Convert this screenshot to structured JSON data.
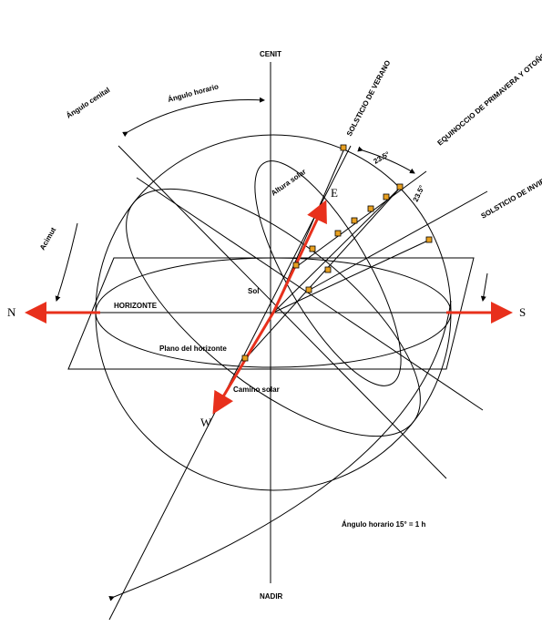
{
  "labels": {
    "zenith": "CENIT",
    "nadir": "NADIR",
    "north": "N",
    "south": "S",
    "east": "E",
    "west": "W",
    "horizon": "HORIZONTE",
    "horizon_plane": "Plano del horizonte",
    "sun_path": "Camino solar",
    "summer_solstice": "SOLSTICIO DE VERANO",
    "equinox": "EQUINOCCIO DE PRIMAVERA Y OTOÑO",
    "winter_solstice": "SOLSTICIO DE INVIERNO",
    "zenith_angle": "Ángulo cenital",
    "hour_angle_top": "Ángulo horario",
    "azimuth": "Acimut",
    "altitude": "Altura solar",
    "sun": "Sol",
    "declination_1": "23.5°",
    "declination_2": "23.5°",
    "hour_angle_note": "Ángulo horario 15° = 1 h"
  }
}
